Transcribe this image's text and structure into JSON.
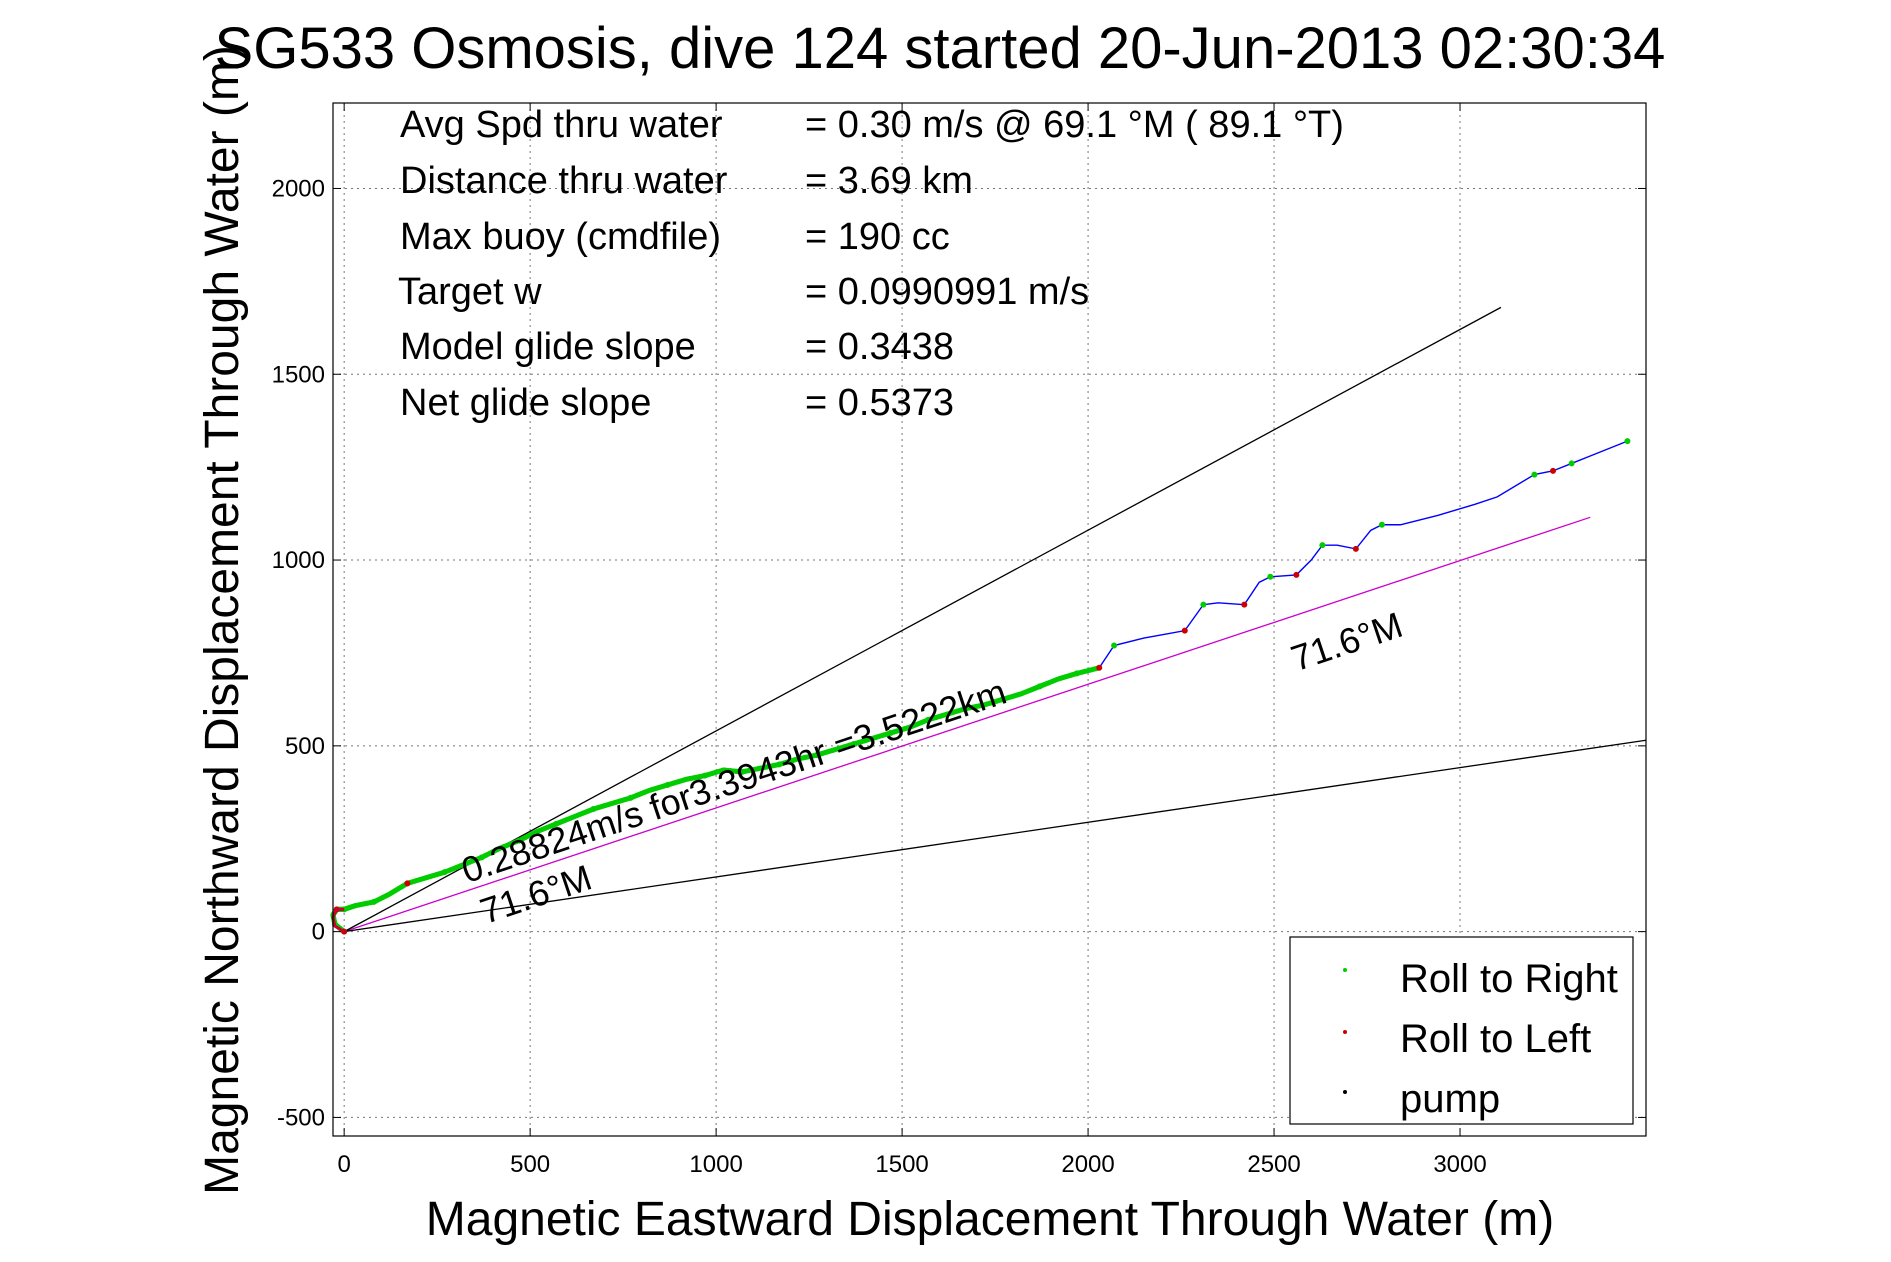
{
  "chart_data": {
    "type": "line",
    "title": "SG533 Osmosis, dive 124 started 20-Jun-2013 02:30:34",
    "xlabel": "Magnetic Eastward Displacement Through Water (m)",
    "ylabel": "Magnetic Northward Displacement Through Water (m)",
    "xlim": [
      -30,
      3500
    ],
    "ylim": [
      -550,
      2230
    ],
    "xticks": [
      0,
      500,
      1000,
      1500,
      2000,
      2500,
      3000
    ],
    "yticks": [
      -500,
      0,
      500,
      1000,
      1500,
      2000
    ],
    "grid": true,
    "info_lines": [
      {
        "label": "Avg Spd thru water",
        "value": "=  0.30 m/s @  69.1 °M ( 89.1 °T)"
      },
      {
        "label": "Distance thru water",
        "value": "=  3.69 km"
      },
      {
        "label": "Max buoy (cmdfile)",
        "value": "= 190 cc"
      },
      {
        "label": "Target w",
        "value": "= 0.0990991 m/s"
      },
      {
        "label": "Model glide slope",
        "value": "= 0.3438"
      },
      {
        "label": "Net glide slope",
        "value": "= 0.5373"
      }
    ],
    "annotations": [
      {
        "text": "0.28824m/s for3.3943hr =3.5222km",
        "x": 330,
        "y": 130,
        "angle_deg": 18.5
      },
      {
        "text": "71.6°M",
        "x": 380,
        "y": 20,
        "angle_deg": 18.5
      },
      {
        "text": "71.6°M",
        "x": 2560,
        "y": 700,
        "angle_deg": 18.5
      }
    ],
    "reference_lines": [
      {
        "name": "heading",
        "color": "#cc00cc",
        "x": [
          0,
          3350
        ],
        "y": [
          0,
          1115
        ]
      },
      {
        "name": "upper-bound",
        "color": "#000000",
        "x": [
          0,
          3110
        ],
        "y": [
          0,
          1680
        ]
      },
      {
        "name": "lower-bound",
        "color": "#000000",
        "x": [
          0,
          3500
        ],
        "y": [
          0,
          515
        ]
      }
    ],
    "track": {
      "color": "#0000ff",
      "x": [
        0,
        -25,
        -30,
        -20,
        0,
        30,
        80,
        120,
        170,
        220,
        270,
        320,
        370,
        420,
        470,
        520,
        570,
        620,
        670,
        720,
        770,
        820,
        870,
        920,
        970,
        1020,
        1070,
        1120,
        1170,
        1220,
        1270,
        1320,
        1370,
        1420,
        1470,
        1520,
        1570,
        1620,
        1670,
        1720,
        1770,
        1820,
        1870,
        1920,
        1970,
        2030,
        2070,
        2150,
        2260,
        2310,
        2350,
        2420,
        2460,
        2490,
        2560,
        2600,
        2630,
        2670,
        2720,
        2760,
        2790,
        2840,
        2940,
        3040,
        3100,
        3200,
        3250,
        3300,
        3350,
        3450
      ],
      "y": [
        0,
        20,
        45,
        60,
        60,
        70,
        80,
        100,
        130,
        145,
        160,
        180,
        200,
        225,
        245,
        270,
        290,
        310,
        330,
        345,
        360,
        380,
        395,
        410,
        420,
        435,
        430,
        440,
        450,
        465,
        475,
        490,
        505,
        520,
        535,
        550,
        570,
        585,
        600,
        610,
        625,
        640,
        660,
        680,
        695,
        710,
        770,
        790,
        810,
        880,
        885,
        880,
        940,
        955,
        960,
        1000,
        1040,
        1040,
        1030,
        1080,
        1095,
        1095,
        1120,
        1150,
        1170,
        1230,
        1240,
        1260,
        1280,
        1320
      ]
    },
    "roll_right_x": [
      -25,
      0,
      80,
      170,
      270,
      370,
      470,
      570,
      670,
      770,
      870,
      970,
      1070,
      1170,
      1270,
      1370,
      1470,
      1570,
      1670,
      1770,
      1870,
      1970,
      2070,
      2310,
      2490,
      2630,
      2790,
      3200,
      3300,
      3450
    ],
    "roll_right_y": [
      20,
      60,
      80,
      130,
      160,
      200,
      245,
      290,
      330,
      360,
      395,
      420,
      430,
      450,
      475,
      505,
      535,
      570,
      600,
      625,
      660,
      695,
      770,
      880,
      955,
      1040,
      1095,
      1230,
      1260,
      1320
    ],
    "roll_left_x": [
      -20,
      0,
      170,
      2030,
      2260,
      2420,
      2560,
      2720,
      3250
    ],
    "roll_left_y": [
      60,
      0,
      130,
      710,
      810,
      880,
      960,
      1030,
      1240
    ],
    "legend": {
      "position": "bottom-right",
      "entries": [
        {
          "label": "Roll to Right",
          "color": "#00cc00"
        },
        {
          "label": "Roll to Left",
          "color": "#cc0000"
        },
        {
          "label": "pump",
          "color": "#000000"
        }
      ]
    }
  }
}
